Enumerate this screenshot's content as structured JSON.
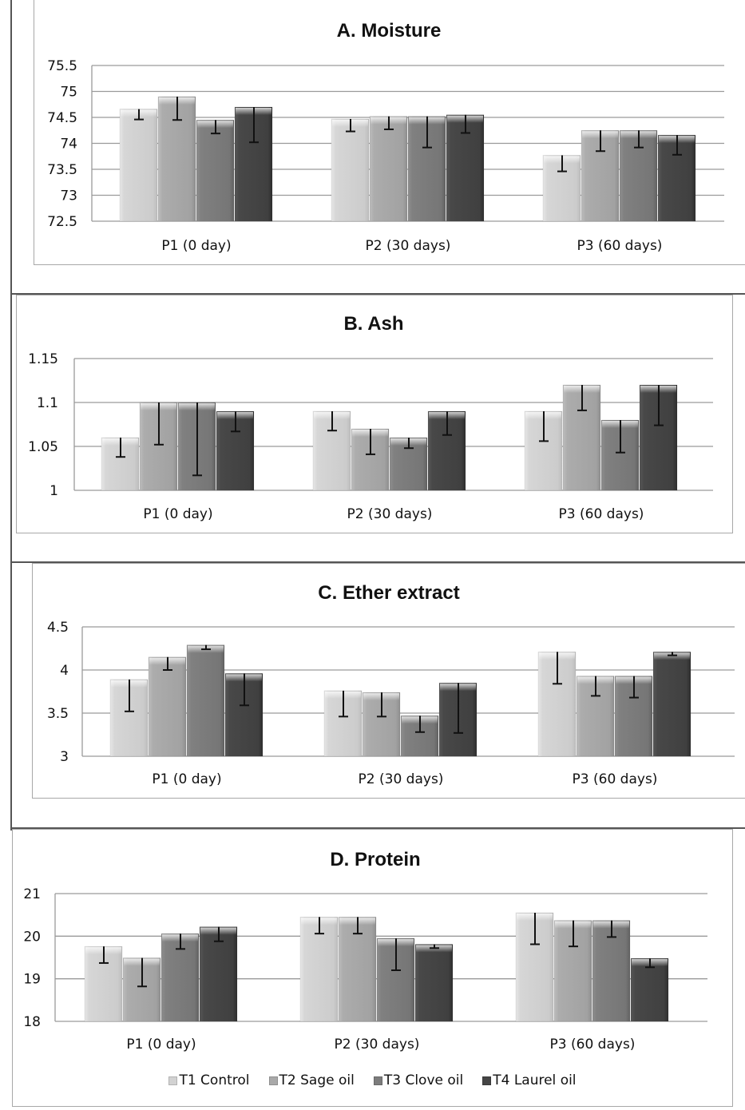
{
  "legend": [
    {
      "label": "T1 Control",
      "color": "#d2d2d2"
    },
    {
      "label": "T2 Sage oil",
      "color": "#a9a9a9"
    },
    {
      "label": "T3 Clove oil",
      "color": "#7c7c7c"
    },
    {
      "label": "T4 Laurel oil",
      "color": "#454545"
    }
  ],
  "chart_data": [
    {
      "type": "bar",
      "title": "A. Moisture",
      "categories": [
        "P1 (0 day)",
        "P2 (30 days)",
        "P3 (60 days)"
      ],
      "ylim": [
        72.5,
        75.5
      ],
      "yticks": [
        72.5,
        73,
        73.5,
        74,
        74.5,
        75,
        75.5
      ],
      "ytick_labels": [
        "72.5",
        "73",
        "73.5",
        "74",
        "74.5",
        "75",
        "75.5"
      ],
      "grid": true,
      "series": [
        {
          "name": "T1 Control",
          "values": [
            74.66,
            74.47,
            73.77
          ],
          "error": [
            0.2,
            0.24,
            0.31
          ]
        },
        {
          "name": "T2 Sage oil",
          "values": [
            74.9,
            74.52,
            74.25
          ],
          "error": [
            0.45,
            0.25,
            0.4
          ]
        },
        {
          "name": "T3 Clove oil",
          "values": [
            74.45,
            74.52,
            74.25
          ],
          "error": [
            0.26,
            0.6,
            0.33
          ]
        },
        {
          "name": "T4 Laurel oil",
          "values": [
            74.7,
            74.55,
            74.16
          ],
          "error": [
            0.68,
            0.35,
            0.38
          ]
        }
      ]
    },
    {
      "type": "bar",
      "title": "B. Ash",
      "categories": [
        "P1 (0 day)",
        "P2 (30 days)",
        "P3 (60 days)"
      ],
      "ylim": [
        1,
        1.15
      ],
      "yticks": [
        1,
        1.05,
        1.1,
        1.15
      ],
      "ytick_labels": [
        "1",
        "1.05",
        "1.1",
        "1.15"
      ],
      "grid": true,
      "series": [
        {
          "name": "T1 Control",
          "values": [
            1.06,
            1.09,
            1.09
          ],
          "error": [
            0.022,
            0.022,
            0.034
          ]
        },
        {
          "name": "T2 Sage oil",
          "values": [
            1.1,
            1.07,
            1.12
          ],
          "error": [
            0.048,
            0.029,
            0.029
          ]
        },
        {
          "name": "T3 Clove oil",
          "values": [
            1.1,
            1.06,
            1.08
          ],
          "error": [
            0.083,
            0.012,
            0.037
          ]
        },
        {
          "name": "T4 Laurel oil",
          "values": [
            1.09,
            1.09,
            1.12
          ],
          "error": [
            0.023,
            0.027,
            0.046
          ]
        }
      ]
    },
    {
      "type": "bar",
      "title": "C. Ether extract",
      "categories": [
        "P1 (0 day)",
        "P2 (30 days)",
        "P3 (60 days)"
      ],
      "ylim": [
        3,
        4.5
      ],
      "yticks": [
        3,
        3.5,
        4,
        4.5
      ],
      "ytick_labels": [
        "3",
        "3.5",
        "4",
        "4.5"
      ],
      "grid": true,
      "series": [
        {
          "name": "T1 Control",
          "values": [
            3.89,
            3.76,
            4.21
          ],
          "error": [
            0.37,
            0.3,
            0.37
          ]
        },
        {
          "name": "T2 Sage oil",
          "values": [
            4.15,
            3.74,
            3.93
          ],
          "error": [
            0.15,
            0.28,
            0.23
          ]
        },
        {
          "name": "T3 Clove oil",
          "values": [
            4.29,
            3.47,
            3.93
          ],
          "error": [
            0.05,
            0.19,
            0.25
          ]
        },
        {
          "name": "T4 Laurel oil",
          "values": [
            3.96,
            3.85,
            4.21
          ],
          "error": [
            0.37,
            0.58,
            0.04
          ]
        }
      ]
    },
    {
      "type": "bar",
      "title": "D. Protein",
      "categories": [
        "P1 (0 day)",
        "P2 (30 days)",
        "P3 (60 days)"
      ],
      "ylim": [
        18,
        21
      ],
      "yticks": [
        18,
        19,
        20,
        21
      ],
      "ytick_labels": [
        "18",
        "19",
        "20",
        "21"
      ],
      "grid": true,
      "legend_position": "bottom",
      "series": [
        {
          "name": "T1 Control",
          "values": [
            19.76,
            20.45,
            20.55
          ],
          "error": [
            0.39,
            0.39,
            0.74
          ]
        },
        {
          "name": "T2 Sage oil",
          "values": [
            19.49,
            20.45,
            20.37
          ],
          "error": [
            0.67,
            0.39,
            0.61
          ]
        },
        {
          "name": "T3 Clove oil",
          "values": [
            20.06,
            19.95,
            20.37
          ],
          "error": [
            0.36,
            0.75,
            0.39
          ]
        },
        {
          "name": "T4 Laurel oil",
          "values": [
            20.22,
            19.81,
            19.48
          ],
          "error": [
            0.34,
            0.09,
            0.21
          ]
        }
      ]
    }
  ]
}
